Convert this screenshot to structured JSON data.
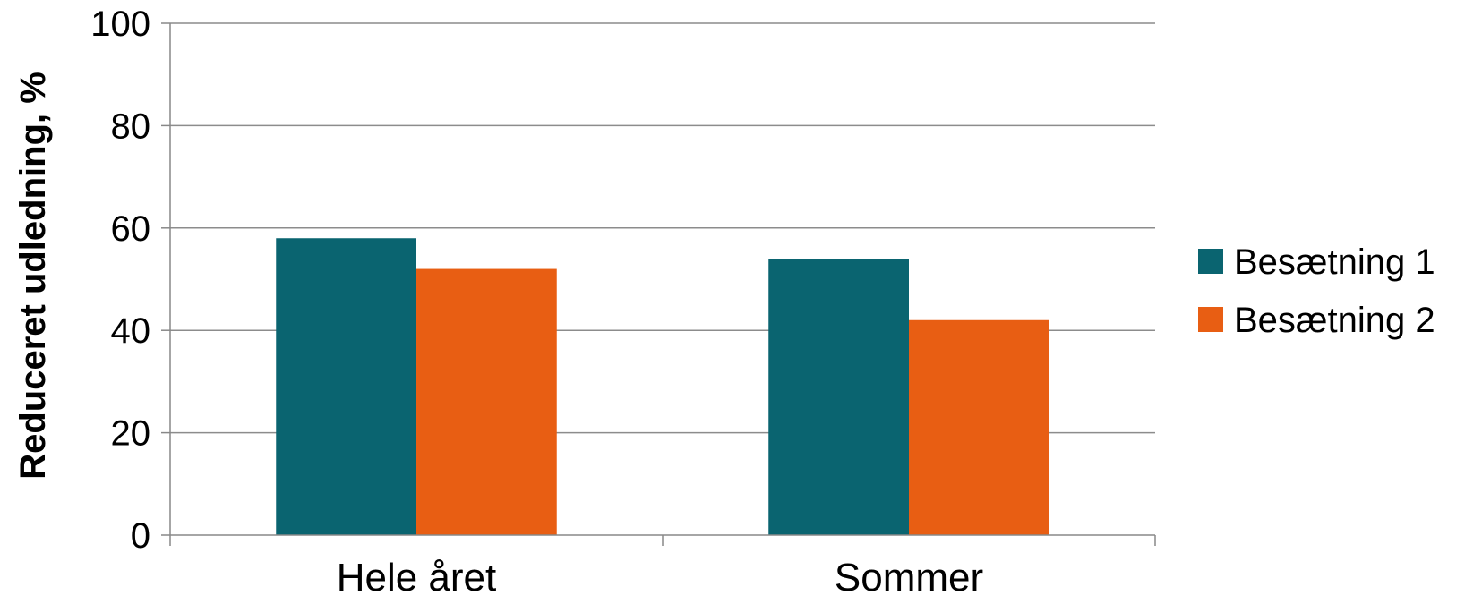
{
  "chart_data": {
    "type": "bar",
    "categories": [
      "Hele året",
      "Sommer"
    ],
    "series": [
      {
        "name": "Besætning 1",
        "values": [
          58,
          54
        ],
        "color": "#0a6470"
      },
      {
        "name": "Besætning 2",
        "values": [
          52,
          42
        ],
        "color": "#e85e13"
      }
    ],
    "ylabel": "Reduceret udledning, %",
    "xlabel": "",
    "ylim": [
      0,
      100
    ],
    "yticks": [
      0,
      20,
      40,
      60,
      80,
      100
    ],
    "grid": true,
    "legend_position": "right"
  }
}
